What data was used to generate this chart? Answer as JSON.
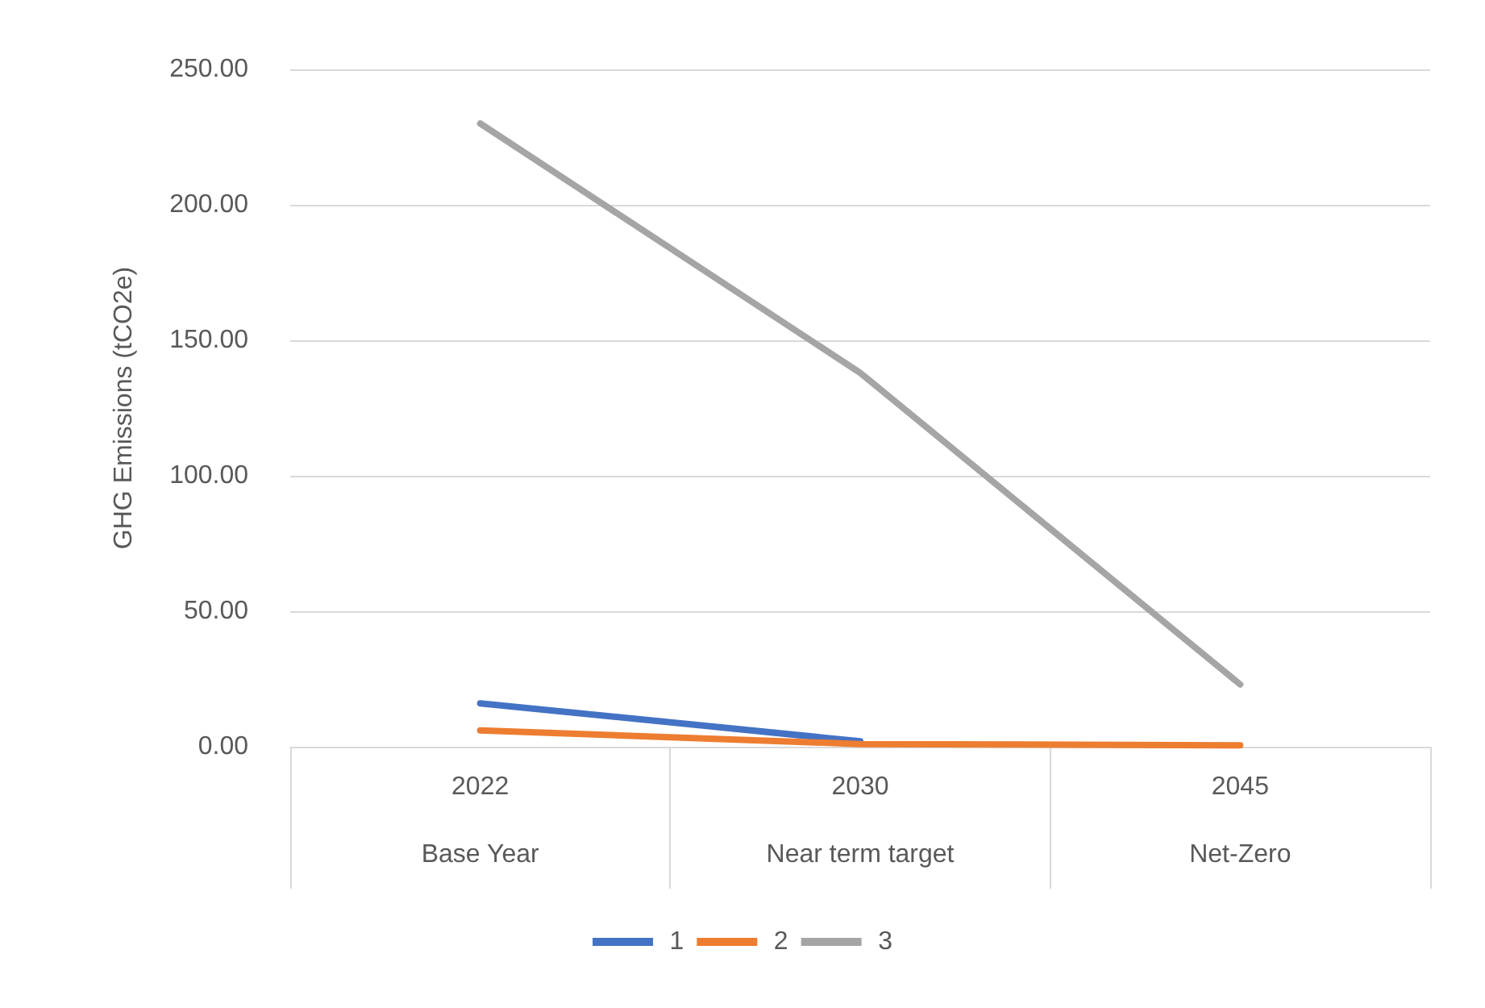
{
  "chart_data": {
    "type": "line",
    "ylabel": "GHG Emissions (tCO2e)",
    "categories": [
      "2022\nBase Year",
      "2030\nNear term target",
      "2045\nNet-Zero"
    ],
    "series": [
      {
        "name": "1",
        "color": "#4472c4",
        "values": [
          16,
          2,
          null
        ]
      },
      {
        "name": "2",
        "color": "#ed7d31",
        "values": [
          6,
          1,
          0.5
        ]
      },
      {
        "name": "3",
        "color": "#a5a5a5",
        "values": [
          230,
          138,
          23
        ]
      }
    ],
    "ylim": [
      0,
      250
    ],
    "yticks": [
      {
        "value": 0,
        "label": "0.00"
      },
      {
        "value": 50,
        "label": "50.00"
      },
      {
        "value": 100,
        "label": "100.00"
      },
      {
        "value": 150,
        "label": "150.00"
      },
      {
        "value": 200,
        "label": "200.00"
      },
      {
        "value": 250,
        "label": "250.00"
      }
    ],
    "grid": "y",
    "legend": "bottom",
    "marker": "none",
    "line_style": "solid"
  }
}
